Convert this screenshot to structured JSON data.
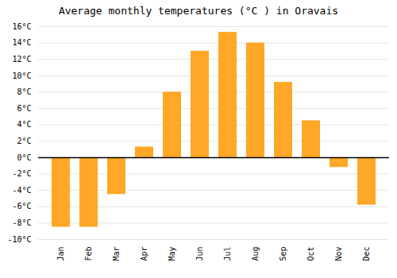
{
  "chart_data": {
    "type": "bar",
    "title": "Average monthly temperatures (°C ) in Oravais",
    "categories": [
      "Jan",
      "Feb",
      "Mar",
      "Apr",
      "May",
      "Jun",
      "Jul",
      "Aug",
      "Sep",
      "Oct",
      "Nov",
      "Dec"
    ],
    "values": [
      -8.5,
      -8.5,
      -4.5,
      1.3,
      8.0,
      13.0,
      15.3,
      14.0,
      9.2,
      4.5,
      -1.2,
      -5.8
    ],
    "color": "#FFA726",
    "ylim": [
      -10,
      16
    ],
    "yticks": [
      {
        "value": -10,
        "label": "-10°C"
      },
      {
        "value": -8,
        "label": "-8°C"
      },
      {
        "value": -6,
        "label": "-6°C"
      },
      {
        "value": -4,
        "label": "-4°C"
      },
      {
        "value": -2,
        "label": "-2°C"
      },
      {
        "value": 0,
        "label": "0°C"
      },
      {
        "value": 2,
        "label": "2°C"
      },
      {
        "value": 4,
        "label": "4°C"
      },
      {
        "value": 6,
        "label": "6°C"
      },
      {
        "value": 8,
        "label": "8°C"
      },
      {
        "value": 10,
        "label": "10°C"
      },
      {
        "value": 12,
        "label": "12°C"
      },
      {
        "value": 14,
        "label": "14°C"
      },
      {
        "value": 16,
        "label": "16°C"
      }
    ],
    "grid": true
  }
}
